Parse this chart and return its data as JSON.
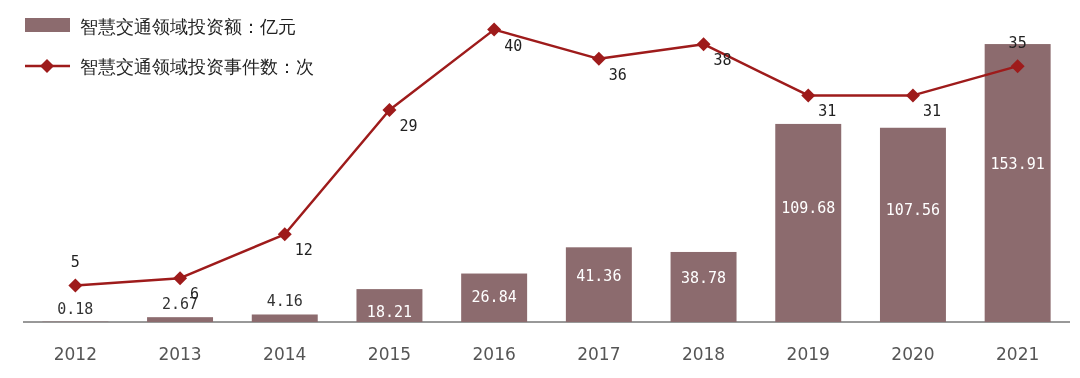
{
  "chart_data": {
    "type": "bar",
    "categories": [
      "2012",
      "2013",
      "2014",
      "2015",
      "2016",
      "2017",
      "2018",
      "2019",
      "2020",
      "2021"
    ],
    "series": [
      {
        "name": "智慧交通领域投资额：亿元",
        "color": "#8c6b6e",
        "values": [
          0.18,
          2.67,
          4.16,
          18.21,
          26.84,
          41.36,
          38.78,
          109.68,
          107.56,
          153.91
        ]
      },
      {
        "name": "智慧交通领域投资事件数：次",
        "type": "line",
        "axis": "y2",
        "color": "#9e1b1b",
        "marker": "diamond",
        "values": [
          5,
          6,
          12,
          29,
          40,
          36,
          38,
          31,
          31,
          35
        ]
      }
    ],
    "ylim": [
      0,
      170
    ],
    "y2lim": [
      0,
      42
    ],
    "data_labels": true,
    "legend": "top left",
    "grid": false,
    "tick_labels": "x"
  }
}
